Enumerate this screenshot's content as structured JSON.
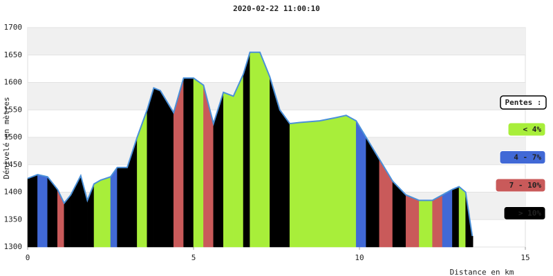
{
  "chart_data": {
    "type": "elevation",
    "title": "2020-02-22 11:00:10",
    "x_label": "Distance en km",
    "y_label": "Dénivelé en mètres",
    "x": [
      0,
      0.3,
      0.6,
      0.9,
      1.1,
      1.3,
      1.6,
      1.8,
      2.0,
      2.2,
      2.5,
      2.7,
      3.0,
      3.3,
      3.6,
      3.8,
      4.0,
      4.4,
      4.7,
      5.0,
      5.3,
      5.6,
      5.9,
      6.2,
      6.5,
      6.7,
      7.0,
      7.3,
      7.6,
      7.9,
      8.2,
      8.8,
      9.3,
      9.6,
      9.9,
      10.2,
      10.6,
      11.0,
      11.4,
      11.8,
      12.2,
      12.5,
      12.8,
      13.0,
      13.2,
      13.4
    ],
    "values": [
      1425,
      1432,
      1428,
      1405,
      1380,
      1395,
      1430,
      1385,
      1415,
      1422,
      1428,
      1445,
      1445,
      1500,
      1550,
      1590,
      1585,
      1545,
      1608,
      1608,
      1595,
      1525,
      1582,
      1575,
      1615,
      1655,
      1655,
      1610,
      1550,
      1525,
      1527,
      1530,
      1536,
      1540,
      1530,
      1500,
      1460,
      1420,
      1395,
      1385,
      1385,
      1395,
      1405,
      1410,
      1400,
      1320
    ],
    "slope_class": [
      3,
      1,
      3,
      2,
      3,
      3,
      3,
      3,
      0,
      0,
      1,
      3,
      3,
      0,
      3,
      3,
      3,
      2,
      3,
      0,
      2,
      3,
      0,
      0,
      3,
      0,
      0,
      3,
      3,
      0,
      0,
      0,
      0,
      0,
      1,
      3,
      2,
      3,
      2,
      0,
      2,
      1,
      3,
      0,
      3,
      3
    ],
    "line_color": "#4a90d9",
    "legend_title": "Pentes :",
    "slope_classes": [
      {
        "name": "< 4%",
        "color": "#a8ee3a"
      },
      {
        "name": "4 - 7%",
        "color": "#4169d6"
      },
      {
        "name": "7 - 10%",
        "color": "#c95a5a"
      },
      {
        "name": "> 10%",
        "color": "#000000"
      }
    ],
    "xlim": [
      0,
      15
    ],
    "xticks": [
      0,
      5,
      10,
      15
    ],
    "ylim": [
      1300,
      1700
    ],
    "yticks": [
      1300,
      1350,
      1400,
      1450,
      1500,
      1550,
      1600,
      1650,
      1700
    ]
  }
}
